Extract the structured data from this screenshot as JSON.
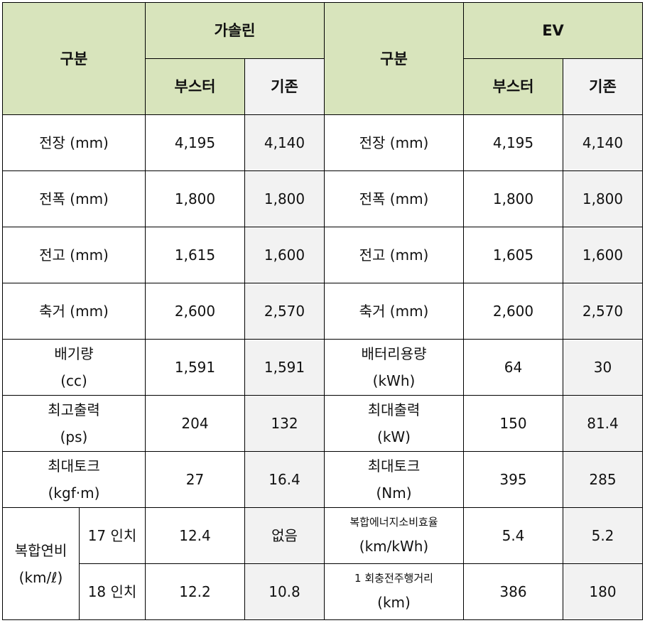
{
  "header": {
    "col_label": "구분",
    "gasoline": "가솔린",
    "ev": "EV",
    "booster": "부스터",
    "existing": "기존"
  },
  "rows": [
    {
      "g_label": "전장 (mm)",
      "g_booster": "4,195",
      "g_existing": "4,140",
      "e_label": "전장 (mm)",
      "e_booster": "4,195",
      "e_existing": "4,140"
    },
    {
      "g_label": "전폭 (mm)",
      "g_booster": "1,800",
      "g_existing": "1,800",
      "e_label": "전폭 (mm)",
      "e_booster": "1,800",
      "e_existing": "1,800"
    },
    {
      "g_label": "전고 (mm)",
      "g_booster": "1,615",
      "g_existing": "1,600",
      "e_label": "전고 (mm)",
      "e_booster": "1,605",
      "e_existing": "1,600"
    },
    {
      "g_label": "축거 (mm)",
      "g_booster": "2,600",
      "g_existing": "2,570",
      "e_label": "축거 (mm)",
      "e_booster": "2,600",
      "e_existing": "2,570"
    }
  ],
  "displacement": {
    "label1": "배기량",
    "label2": "(cc)",
    "booster": "1,591",
    "existing": "1,591",
    "e_label1": "배터리용량",
    "e_label2": "(kWh)",
    "e_booster": "64",
    "e_existing": "30"
  },
  "power": {
    "label1": "최고출력",
    "label2": "(ps)",
    "booster": "204",
    "existing": "132",
    "e_label1": "최대출력",
    "e_label2": "(kW)",
    "e_booster": "150",
    "e_existing": "81.4"
  },
  "torque": {
    "label1": "최대토크",
    "label2": "(kgf·m)",
    "booster": "27",
    "existing": "16.4",
    "e_label1": "최대토크",
    "e_label2": "(Nm)",
    "e_booster": "395",
    "e_existing": "285"
  },
  "fuel": {
    "label1": "복합연비",
    "label2": "(km/ℓ)",
    "r17": {
      "size": "17 인치",
      "booster": "12.4",
      "existing": "없음",
      "e_label1": "복합에너지소비효율",
      "e_label2": "(km/kWh)",
      "e_booster": "5.4",
      "e_existing": "5.2"
    },
    "r18": {
      "size": "18 인치",
      "booster": "12.2",
      "existing": "10.8",
      "e_label1": "1 회충전주행거리",
      "e_label2": "(km)",
      "e_booster": "386",
      "e_existing": "180"
    }
  }
}
